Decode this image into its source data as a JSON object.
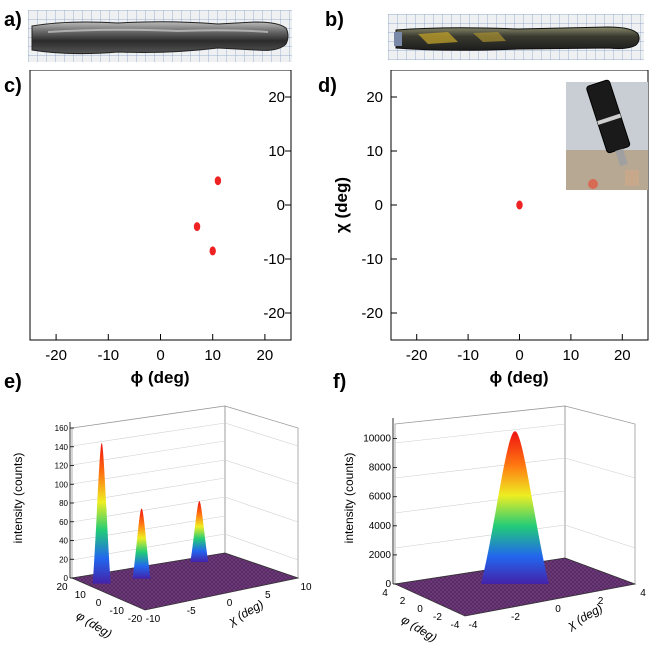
{
  "panels": {
    "a": {
      "label": "a)"
    },
    "b": {
      "label": "b)"
    },
    "c": {
      "label": "c)"
    },
    "d": {
      "label": "d)"
    },
    "e": {
      "label": "e)"
    },
    "f": {
      "label": "f)"
    }
  },
  "colors": {
    "spot": "#ee2222",
    "surface": "#5a2a66",
    "axis": "#000000"
  },
  "icons": {
    "inset_photo": "sample-photo-icon"
  },
  "chart_data": [
    {
      "panel": "c",
      "type": "scatter",
      "title": "",
      "xlabel": "ϕ (deg)",
      "ylabel": "",
      "xlim": [
        -25,
        25
      ],
      "ylim": [
        -25,
        25
      ],
      "x_ticks": [
        "-20",
        "-10",
        "0",
        "10",
        "20"
      ],
      "y_ticks": [
        "20",
        "10",
        "0",
        "-10",
        "-20"
      ],
      "x_tick_values": [
        -20,
        -10,
        0,
        10,
        20
      ],
      "y_tick_values": [
        20,
        10,
        0,
        -10,
        -20
      ],
      "y_axis_side": "right",
      "points": [
        {
          "x": 11,
          "y": 4.5
        },
        {
          "x": 7,
          "y": -4
        },
        {
          "x": 10,
          "y": -8.5
        }
      ]
    },
    {
      "panel": "d",
      "type": "scatter",
      "title": "",
      "xlabel": "ϕ (deg)",
      "ylabel": "χ (deg)",
      "xlim": [
        -25,
        25
      ],
      "ylim": [
        -25,
        25
      ],
      "x_ticks": [
        "-20",
        "-10",
        "0",
        "10",
        "20"
      ],
      "y_ticks": [
        "20",
        "10",
        "0",
        "-10",
        "-20"
      ],
      "x_tick_values": [
        -20,
        -10,
        0,
        10,
        20
      ],
      "y_tick_values": [
        20,
        10,
        0,
        -10,
        -20
      ],
      "y_axis_side": "left",
      "points": [
        {
          "x": 0,
          "y": 0
        }
      ]
    },
    {
      "panel": "e",
      "type": "surface",
      "xlabel": "φ (deg)",
      "ylabel": "χ (deg)",
      "zlabel": "intensity (counts)",
      "z_ticks": [
        "160",
        "140",
        "120",
        "100",
        "80",
        "60",
        "40",
        "20",
        "0"
      ],
      "zlim": [
        0,
        160
      ],
      "phi_ticks": [
        "20",
        "10",
        "0",
        "-10",
        "-20"
      ],
      "chi_ticks": [
        "10",
        "5",
        "0",
        "-5",
        "-10"
      ],
      "peaks": [
        {
          "phi": 10,
          "chi": -8.5,
          "intensity": 150
        },
        {
          "phi": 7,
          "chi": -4,
          "intensity": 75
        },
        {
          "phi": 11,
          "chi": 4.5,
          "intensity": 65
        }
      ]
    },
    {
      "panel": "f",
      "type": "surface",
      "xlabel": "φ (deg)",
      "ylabel": "χ (deg)",
      "zlabel": "intensity (counts)",
      "z_ticks": [
        "10000",
        "8000",
        "6000",
        "4000",
        "2000",
        "0"
      ],
      "zlim": [
        0,
        11000
      ],
      "phi_ticks": [
        "4",
        "2",
        "0",
        "-2",
        "-4"
      ],
      "chi_ticks": [
        "4",
        "2",
        "0",
        "-2",
        "-4"
      ],
      "peaks": [
        {
          "phi": 0,
          "chi": 0,
          "intensity": 10500
        }
      ]
    }
  ]
}
